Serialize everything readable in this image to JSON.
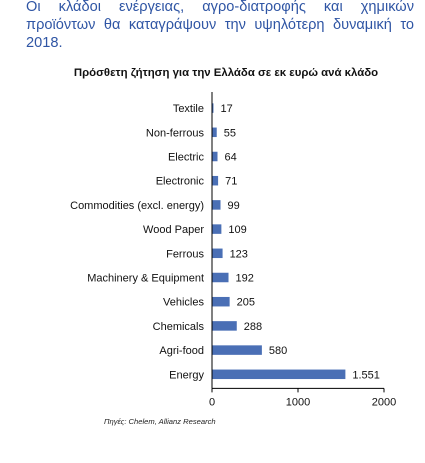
{
  "intro_text": "Οι κλάδοι ενέργειας, αγρο-διατροφής και χημικών προϊόντων θα καταγράψουν την υψηλότερη δυναμική το 2018.",
  "chart_data": {
    "type": "bar",
    "orientation": "horizontal",
    "title": "Πρόσθετη ζήτηση για την Ελλάδα σε εκ ευρώ ανά κλάδο",
    "categories": [
      "Textile",
      "Non-ferrous",
      "Electric",
      "Electronic",
      "Commodities (excl. energy)",
      "Wood Paper",
      "Ferrous",
      "Machinery & Equipment",
      "Vehicles",
      "Chemicals",
      "Agri-food",
      "Energy"
    ],
    "values": [
      17,
      55,
      64,
      71,
      99,
      109,
      123,
      192,
      205,
      288,
      580,
      1551
    ],
    "value_labels": [
      "17",
      "55",
      "64",
      "71",
      "99",
      "109",
      "123",
      "192",
      "205",
      "288",
      "580",
      "1.551"
    ],
    "xlim": [
      0,
      2000
    ],
    "xticks": [
      "0",
      "1000",
      "2000"
    ],
    "xlabel": "",
    "ylabel": "",
    "grid": false,
    "bar_color": "#4a6fb5"
  },
  "source": "Πηγές: Chelem, Allianz Research"
}
